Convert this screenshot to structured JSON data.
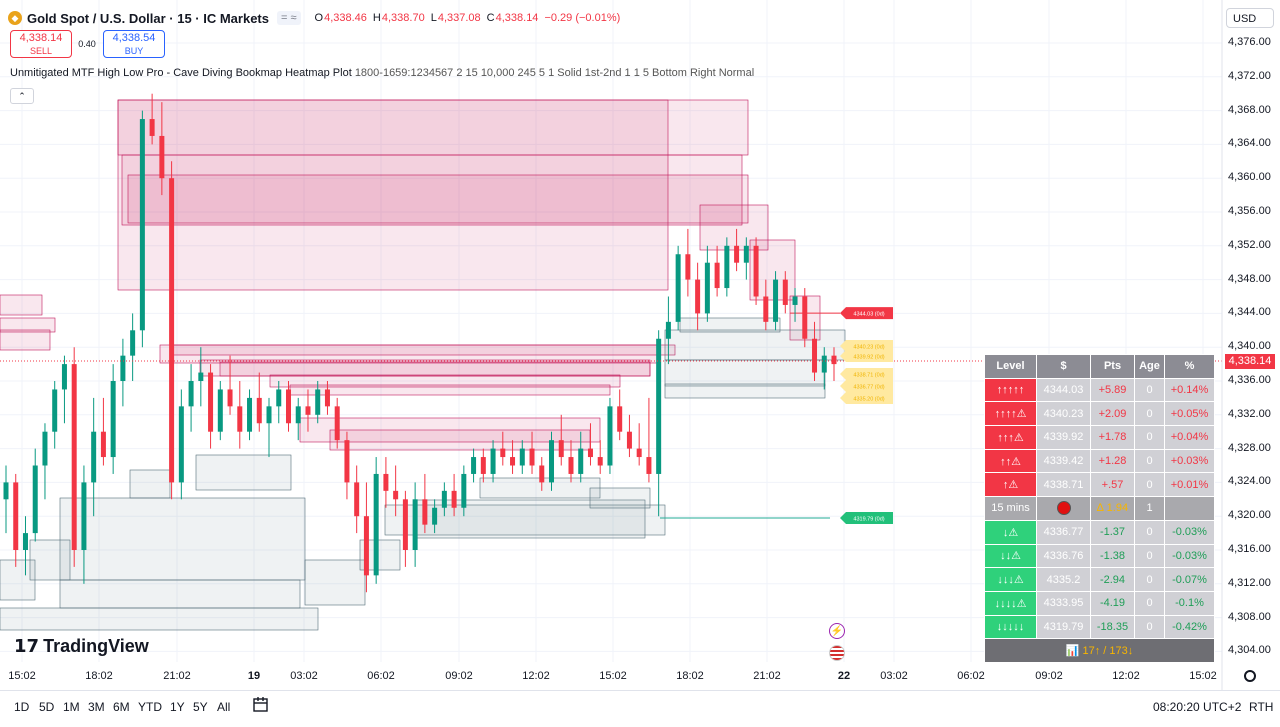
{
  "header": {
    "title": "Gold Spot / U.S. Dollar · 15 · IC Markets",
    "pill": "= ≈",
    "open_label": "O",
    "open": "4,338.46",
    "high_label": "H",
    "high": "4,338.70",
    "low_label": "L",
    "low": "4,337.08",
    "close_label": "C",
    "close": "4,338.14",
    "change": "−0.29 (−0.01%)"
  },
  "trade": {
    "sell_price": "4,338.14",
    "sell_label": "SELL",
    "spread": "0.40",
    "buy_price": "4,338.54",
    "buy_label": "BUY"
  },
  "indicator": {
    "name": "Unmitigated MTF High Low Pro - Cave Diving Bookmap Heatmap Plot",
    "params": "1800-1659:1234567 2 15 10,000 245 5 1 Solid 1st-2nd 1 1 5 Bottom Right Normal",
    "collapse": "⌃"
  },
  "currency": "USD",
  "current_price": "4,338.14",
  "y_axis": [
    "4,376.00",
    "4,372.00",
    "4,368.00",
    "4,364.00",
    "4,360.00",
    "4,356.00",
    "4,352.00",
    "4,348.00",
    "4,344.00",
    "4,340.00",
    "4,336.00",
    "4,332.00",
    "4,328.00",
    "4,324.00",
    "4,320.00",
    "4,316.00",
    "4,312.00",
    "4,308.00",
    "4,304.00"
  ],
  "x_axis": [
    "15:02",
    "18:02",
    "21:02",
    "19",
    "03:02",
    "06:02",
    "09:02",
    "12:02",
    "15:02",
    "18:02",
    "21:02",
    "22",
    "03:02",
    "06:02",
    "09:02",
    "12:02",
    "15:02"
  ],
  "level_table": {
    "headers": [
      "Level",
      "$",
      "Pts",
      "Age",
      "%"
    ],
    "up_rows": [
      {
        "level": "↑↑↑↑↑",
        "price": "4344.03",
        "pts": "+5.89",
        "age": "0",
        "pct": "+0.14%"
      },
      {
        "level": "↑↑↑↑⚠",
        "price": "4340.23",
        "pts": "+2.09",
        "age": "0",
        "pct": "+0.05%"
      },
      {
        "level": "↑↑↑⚠",
        "price": "4339.92",
        "pts": "+1.78",
        "age": "0",
        "pct": "+0.04%"
      },
      {
        "level": "↑↑⚠",
        "price": "4339.42",
        "pts": "+1.28",
        "age": "0",
        "pct": "+0.03%"
      },
      {
        "level": "↑⚠",
        "price": "4338.71",
        "pts": "+.57",
        "age": "0",
        "pct": "+0.01%"
      }
    ],
    "mid": {
      "tf": "15 mins",
      "amount": "∆ 1.94",
      "count": "1"
    },
    "down_rows": [
      {
        "level": "↓⚠",
        "price": "4336.77",
        "pts": "-1.37",
        "age": "0",
        "pct": "-0.03%"
      },
      {
        "level": "↓↓⚠",
        "price": "4336.76",
        "pts": "-1.38",
        "age": "0",
        "pct": "-0.03%"
      },
      {
        "level": "↓↓↓⚠",
        "price": "4335.2",
        "pts": "-2.94",
        "age": "0",
        "pct": "-0.07%"
      },
      {
        "level": "↓↓↓↓⚠",
        "price": "4333.95",
        "pts": "-4.19",
        "age": "0",
        "pct": "-0.1%"
      },
      {
        "level": "↓↓↓↓↓",
        "price": "4319.79",
        "pts": "-18.35",
        "age": "0",
        "pct": "-0.42%"
      }
    ],
    "footer": "📊 17↑ / 173↓"
  },
  "tags": {
    "red": "4344.03 (0d)",
    "yellow": [
      "4340.23 (0d)",
      "4339.92 (0d)",
      "4338.71 (0d)",
      "4336.77 (0d)",
      "4335.20 (0d)"
    ],
    "green": "4319.79 (0d)"
  },
  "logo": "TradingView",
  "range_buttons": [
    "1D",
    "5D",
    "1M",
    "3M",
    "6M",
    "YTD",
    "1Y",
    "5Y",
    "All"
  ],
  "clock": "08:20:20 UTC+2",
  "session": "RTH",
  "icons": [
    "calendar-icon",
    "gear-icon",
    "flash-icon",
    "flag-icon"
  ],
  "colors": {
    "up": "#089981",
    "down": "#f23645",
    "zone_red": "#c2185b",
    "zone_grey": "#78909c",
    "accent": "#2962ff"
  },
  "chart_data": {
    "type": "candlestick",
    "symbol": "XAUUSD",
    "ylim": [
      4302,
      4379
    ],
    "candles": [
      [
        4322.0,
        4326.0,
        4318.0,
        4324.0
      ],
      [
        4324.0,
        4325.0,
        4314.0,
        4316.0
      ],
      [
        4316.0,
        4320.0,
        4313.0,
        4318.0
      ],
      [
        4318.0,
        4328.0,
        4317.0,
        4326.0
      ],
      [
        4326.0,
        4331.0,
        4322.0,
        4330.0
      ],
      [
        4330.0,
        4336.0,
        4328.0,
        4335.0
      ],
      [
        4335.0,
        4339.0,
        4331.0,
        4338.0
      ],
      [
        4338.0,
        4340.0,
        4314.0,
        4316.0
      ],
      [
        4316.0,
        4326.0,
        4312.0,
        4324.0
      ],
      [
        4324.0,
        4334.0,
        4320.0,
        4330.0
      ],
      [
        4330.0,
        4334.0,
        4326.0,
        4327.0
      ],
      [
        4327.0,
        4338.0,
        4325.0,
        4336.0
      ],
      [
        4336.0,
        4341.0,
        4333.0,
        4339.0
      ],
      [
        4339.0,
        4344.0,
        4336.0,
        4342.0
      ],
      [
        4342.0,
        4368.0,
        4340.0,
        4367.0
      ],
      [
        4367.0,
        4370.0,
        4364.0,
        4365.0
      ],
      [
        4365.0,
        4369.0,
        4358.0,
        4360.0
      ],
      [
        4360.0,
        4362.0,
        4322.0,
        4324.0
      ],
      [
        4324.0,
        4335.0,
        4322.0,
        4333.0
      ],
      [
        4333.0,
        4338.0,
        4330.0,
        4336.0
      ],
      [
        4336.0,
        4340.0,
        4333.0,
        4337.0
      ],
      [
        4337.0,
        4338.0,
        4328.0,
        4330.0
      ],
      [
        4330.0,
        4336.0,
        4329.0,
        4335.0
      ],
      [
        4335.0,
        4339.0,
        4332.0,
        4333.0
      ],
      [
        4333.0,
        4336.0,
        4328.0,
        4330.0
      ],
      [
        4330.0,
        4335.0,
        4329.0,
        4334.0
      ],
      [
        4334.0,
        4337.0,
        4330.0,
        4331.0
      ],
      [
        4331.0,
        4334.0,
        4327.0,
        4333.0
      ],
      [
        4333.0,
        4336.0,
        4331.0,
        4335.0
      ],
      [
        4335.0,
        4336.0,
        4330.0,
        4331.0
      ],
      [
        4331.0,
        4334.0,
        4329.0,
        4333.0
      ],
      [
        4333.0,
        4335.0,
        4330.0,
        4332.0
      ],
      [
        4332.0,
        4336.0,
        4331.0,
        4335.0
      ],
      [
        4335.0,
        4336.0,
        4332.0,
        4333.0
      ],
      [
        4333.0,
        4334.0,
        4328.0,
        4329.0
      ],
      [
        4329.0,
        4330.0,
        4322.0,
        4324.0
      ],
      [
        4324.0,
        4326.0,
        4318.0,
        4320.0
      ],
      [
        4320.0,
        4324.0,
        4311.0,
        4313.0
      ],
      [
        4313.0,
        4327.0,
        4312.0,
        4325.0
      ],
      [
        4325.0,
        4327.0,
        4321.0,
        4323.0
      ],
      [
        4323.0,
        4326.0,
        4320.0,
        4322.0
      ],
      [
        4322.0,
        4323.0,
        4314.0,
        4316.0
      ],
      [
        4316.0,
        4324.0,
        4314.0,
        4322.0
      ],
      [
        4322.0,
        4325.0,
        4318.0,
        4319.0
      ],
      [
        4319.0,
        4322.0,
        4318.0,
        4321.0
      ],
      [
        4321.0,
        4324.0,
        4320.0,
        4323.0
      ],
      [
        4323.0,
        4325.0,
        4320.0,
        4321.0
      ],
      [
        4321.0,
        4326.0,
        4320.0,
        4325.0
      ],
      [
        4325.0,
        4328.0,
        4324.0,
        4327.0
      ],
      [
        4327.0,
        4328.0,
        4324.0,
        4325.0
      ],
      [
        4325.0,
        4329.0,
        4324.0,
        4328.0
      ],
      [
        4328.0,
        4330.0,
        4326.0,
        4327.0
      ],
      [
        4327.0,
        4329.0,
        4325.0,
        4326.0
      ],
      [
        4326.0,
        4329.0,
        4325.0,
        4328.0
      ],
      [
        4328.0,
        4330.0,
        4325.0,
        4326.0
      ],
      [
        4326.0,
        4327.0,
        4323.0,
        4324.0
      ],
      [
        4324.0,
        4330.0,
        4323.0,
        4329.0
      ],
      [
        4329.0,
        4332.0,
        4326.0,
        4327.0
      ],
      [
        4327.0,
        4329.0,
        4324.0,
        4325.0
      ],
      [
        4325.0,
        4330.0,
        4324.0,
        4328.0
      ],
      [
        4328.0,
        4331.0,
        4326.0,
        4327.0
      ],
      [
        4327.0,
        4329.0,
        4325.0,
        4326.0
      ],
      [
        4326.0,
        4334.0,
        4325.0,
        4333.0
      ],
      [
        4333.0,
        4335.0,
        4329.0,
        4330.0
      ],
      [
        4330.0,
        4332.0,
        4327.0,
        4328.0
      ],
      [
        4328.0,
        4331.0,
        4326.0,
        4327.0
      ],
      [
        4327.0,
        4334.0,
        4324.0,
        4325.0
      ],
      [
        4325.0,
        4342.0,
        4320.0,
        4341.0
      ],
      [
        4341.0,
        4346.0,
        4338.0,
        4343.0
      ],
      [
        4343.0,
        4352.0,
        4342.0,
        4351.0
      ],
      [
        4351.0,
        4354.0,
        4346.0,
        4348.0
      ],
      [
        4348.0,
        4350.0,
        4342.0,
        4344.0
      ],
      [
        4344.0,
        4352.0,
        4343.0,
        4350.0
      ],
      [
        4350.0,
        4352.0,
        4346.0,
        4347.0
      ],
      [
        4347.0,
        4353.0,
        4346.0,
        4352.0
      ],
      [
        4352.0,
        4354.0,
        4349.0,
        4350.0
      ],
      [
        4350.0,
        4353.0,
        4348.0,
        4352.0
      ],
      [
        4352.0,
        4353.0,
        4345.0,
        4346.0
      ],
      [
        4346.0,
        4348.0,
        4342.0,
        4343.0
      ],
      [
        4343.0,
        4349.0,
        4342.0,
        4348.0
      ],
      [
        4348.0,
        4349.0,
        4344.0,
        4345.0
      ],
      [
        4345.0,
        4347.0,
        4343.0,
        4346.0
      ],
      [
        4346.0,
        4347.0,
        4340.0,
        4341.0
      ],
      [
        4341.0,
        4343.0,
        4336.0,
        4337.0
      ],
      [
        4337.0,
        4340.0,
        4335.0,
        4339.0
      ],
      [
        4339.0,
        4340.0,
        4336.0,
        4338.0
      ]
    ]
  }
}
